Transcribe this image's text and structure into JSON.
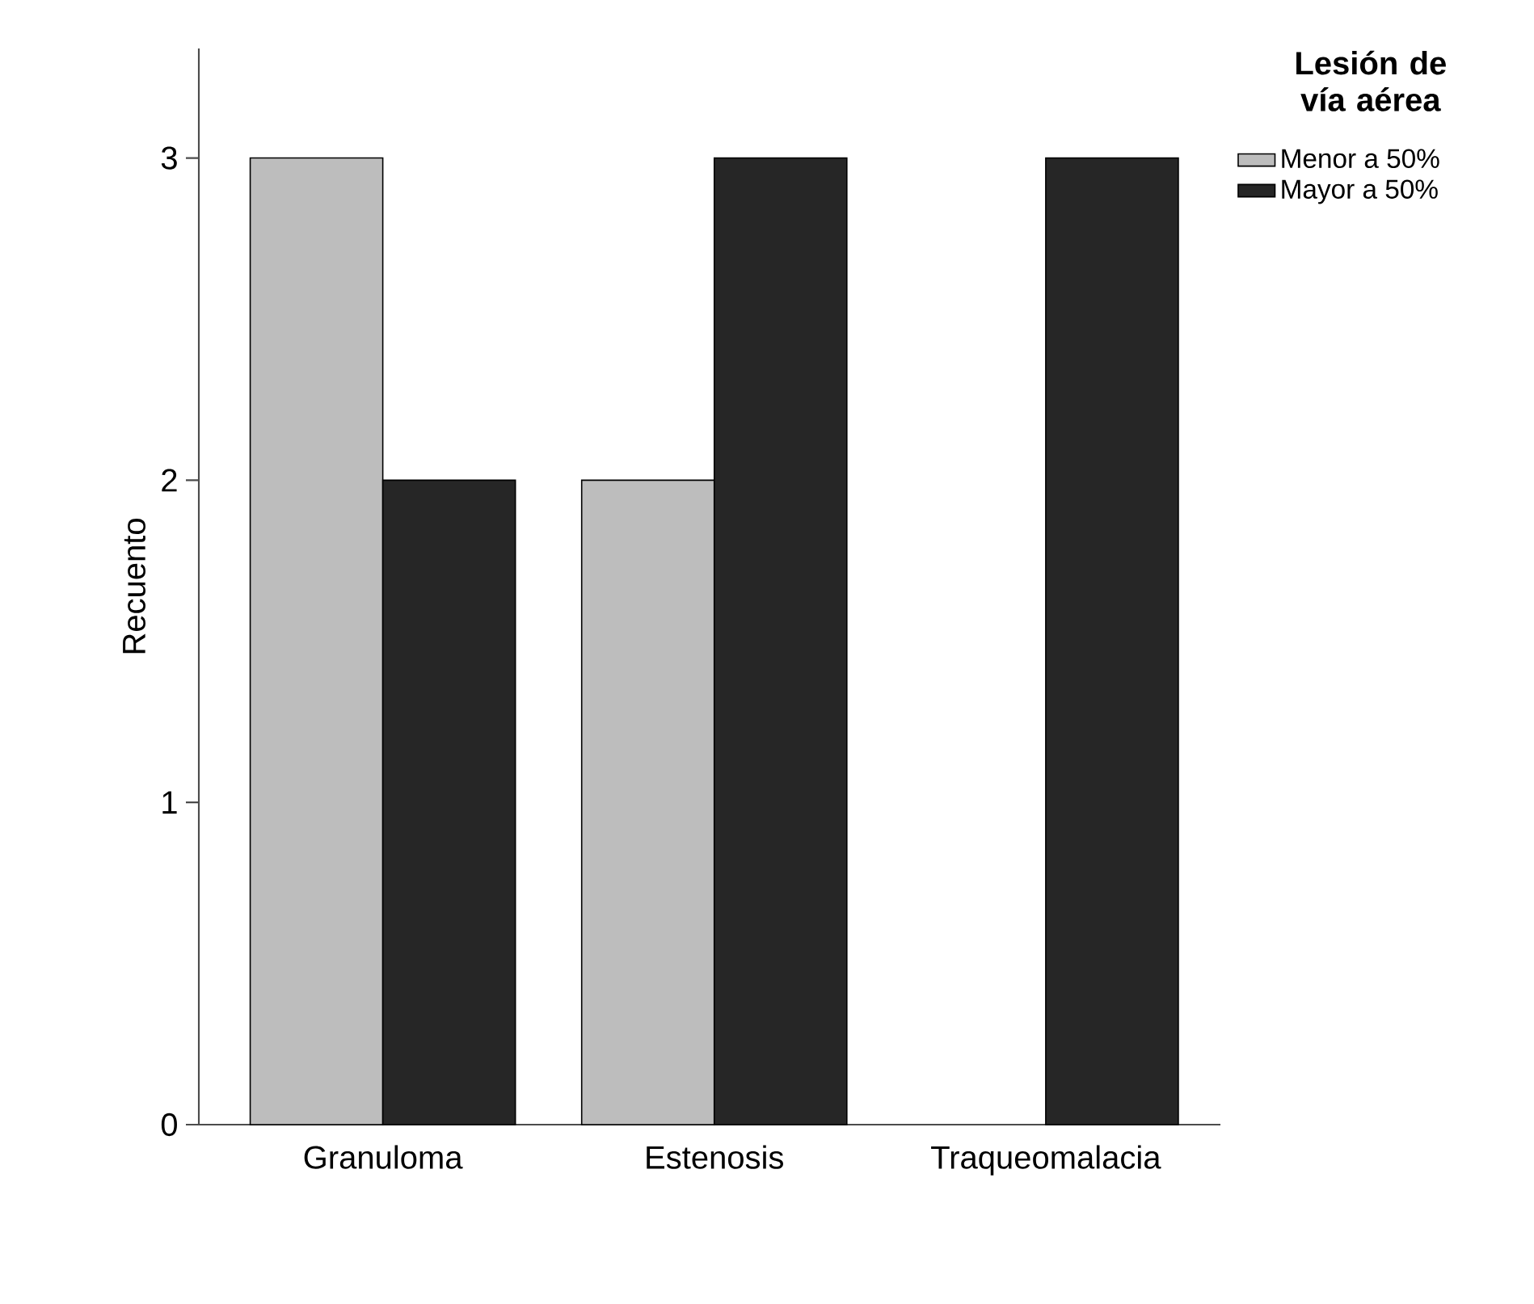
{
  "chart_data": {
    "type": "bar",
    "ylabel": "Recuento",
    "legend_title": "Lesión de vía aérea",
    "categories": [
      "Granuloma",
      "Estenosis",
      "Traqueomalacia"
    ],
    "series": [
      {
        "name": "Menor a 50%",
        "color": "#bdbdbd",
        "values": [
          3,
          2,
          null
        ]
      },
      {
        "name": "Mayor a 50%",
        "color": "#262626",
        "values": [
          2,
          3,
          3
        ]
      }
    ],
    "ylim": [
      0,
      3.34
    ],
    "yticks": [
      0,
      1,
      2,
      3
    ],
    "legend": "top right"
  }
}
